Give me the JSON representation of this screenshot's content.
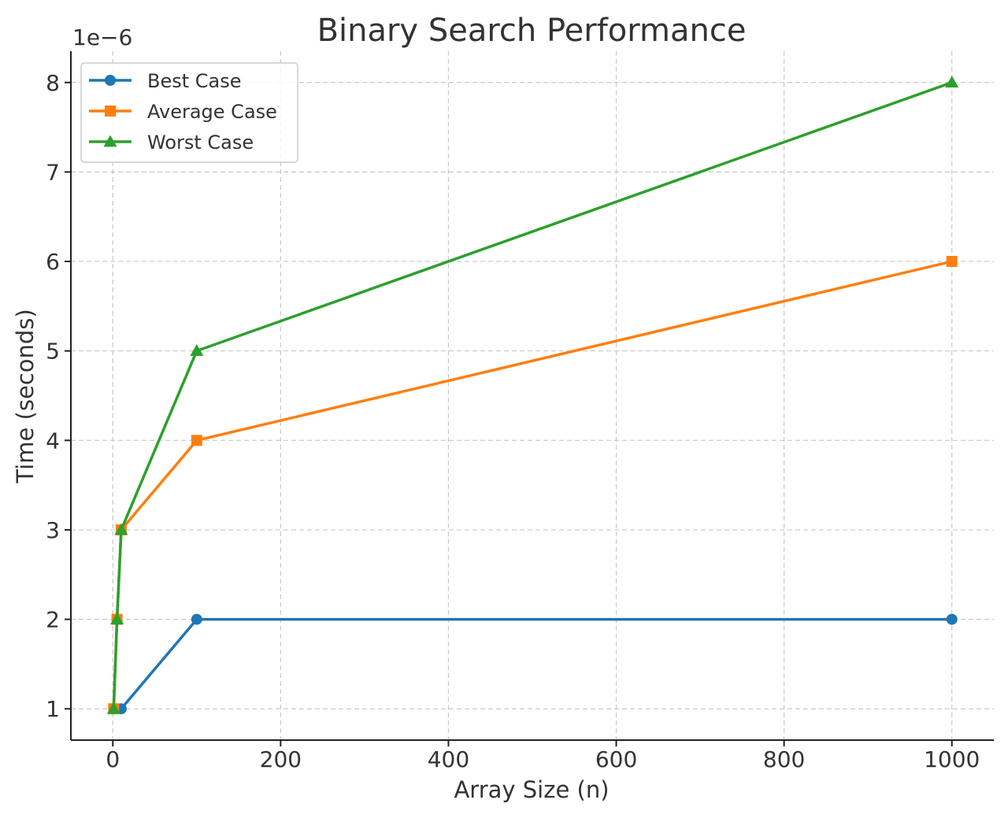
{
  "chart_data": {
    "type": "line",
    "title": "Binary Search Performance",
    "xlabel": "Array Size (n)",
    "ylabel": "Time (seconds)",
    "y_offset_label": "1e−6",
    "xlim": [
      -50,
      1050
    ],
    "ylim": [
      0.65,
      8.35
    ],
    "xticks": [
      0,
      200,
      400,
      600,
      800,
      1000
    ],
    "yticks": [
      1,
      2,
      3,
      4,
      5,
      6,
      7,
      8
    ],
    "grid": true,
    "legend_position": "top-left",
    "series": [
      {
        "name": "Best Case",
        "x": [
          1,
          10,
          100,
          1000
        ],
        "y": [
          1,
          1,
          2,
          2
        ],
        "color": "#1f77b4",
        "marker": "circle"
      },
      {
        "name": "Average Case",
        "x": [
          1,
          5,
          10,
          100,
          1000
        ],
        "y": [
          1,
          2,
          3,
          4,
          6
        ],
        "color": "#ff7f0e",
        "marker": "square"
      },
      {
        "name": "Worst Case",
        "x": [
          1,
          5,
          10,
          100,
          1000
        ],
        "y": [
          1,
          2,
          3,
          5,
          8
        ],
        "color": "#2ca02c",
        "marker": "triangle"
      }
    ]
  }
}
